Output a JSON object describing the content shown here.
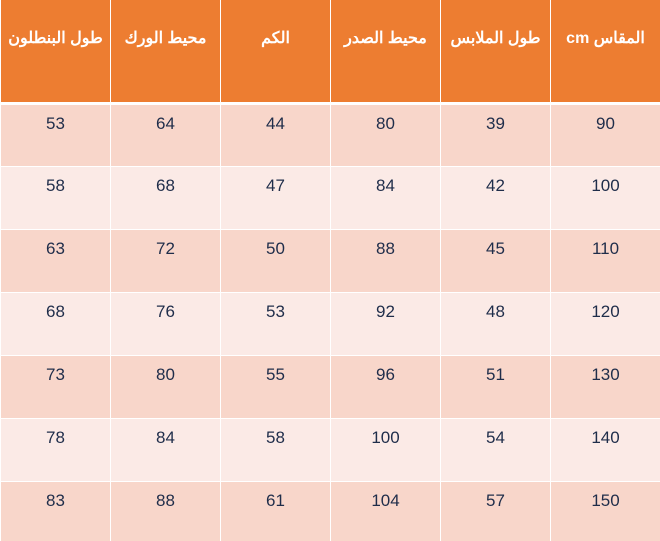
{
  "table": {
    "headers": [
      "المقاس cm",
      "طول الملابس",
      "محيط الصدر",
      "الكم",
      "محيط الورك",
      "طول البنطلون"
    ],
    "rows": [
      [
        "90",
        "39",
        "80",
        "44",
        "64",
        "53"
      ],
      [
        "100",
        "42",
        "84",
        "47",
        "68",
        "58"
      ],
      [
        "110",
        "45",
        "88",
        "50",
        "72",
        "63"
      ],
      [
        "120",
        "48",
        "92",
        "53",
        "76",
        "68"
      ],
      [
        "130",
        "51",
        "96",
        "55",
        "80",
        "73"
      ],
      [
        "140",
        "54",
        "100",
        "58",
        "84",
        "78"
      ],
      [
        "150",
        "57",
        "104",
        "61",
        "88",
        "83"
      ]
    ]
  },
  "colors": {
    "header_bg": "#ed7d31",
    "header_text": "#ffffff",
    "row_odd_bg": "#f8d6ca",
    "row_even_bg": "#fbeae6",
    "cell_text": "#1f2d4a"
  }
}
